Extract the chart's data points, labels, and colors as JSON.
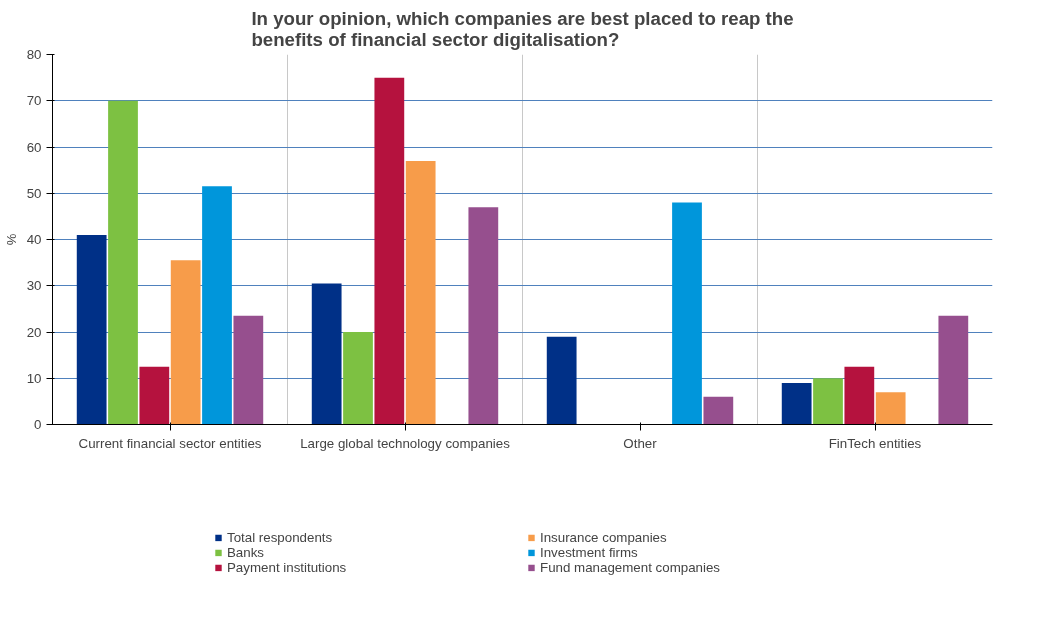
{
  "chart_data": {
    "type": "bar",
    "title": "In your opinion, which companies are best placed to reap the\nbenefits of financial sector digitalisation?",
    "ylabel": "%",
    "categories": [
      "Current financial sector entities",
      "Large global technology companies",
      "Other",
      "FinTech entities"
    ],
    "series": [
      {
        "name": "Total respondents",
        "color": "#003087",
        "values": [
          41,
          30.5,
          19,
          9
        ]
      },
      {
        "name": "Banks",
        "color": "#7dc142",
        "values": [
          70,
          20,
          null,
          10
        ]
      },
      {
        "name": "Payment institutions",
        "color": "#b5123e",
        "values": [
          12.5,
          75,
          null,
          12.5
        ]
      },
      {
        "name": "Insurance companies",
        "color": "#f79c4a",
        "values": [
          35.5,
          57,
          null,
          7
        ]
      },
      {
        "name": "Investment firms",
        "color": "#0096db",
        "values": [
          51.5,
          null,
          48,
          null
        ]
      },
      {
        "name": "Fund management companies",
        "color": "#964f8e",
        "values": [
          23.5,
          47,
          6,
          23.5
        ]
      }
    ],
    "ylim": [
      0,
      80
    ],
    "yticks": [
      0,
      10,
      20,
      30,
      40,
      50,
      60,
      70,
      80
    ],
    "grid": true,
    "legend": "bottom"
  }
}
